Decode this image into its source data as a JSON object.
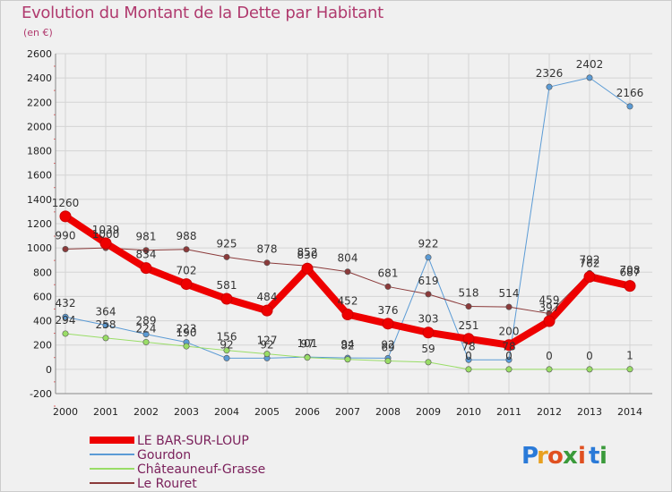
{
  "title": "Evolution du Montant de la Dette par Habitant",
  "subtitle": "(en €)",
  "logo": {
    "letters": [
      "P",
      "r",
      "o",
      "x",
      "i",
      "t",
      "i"
    ],
    "colors": [
      "#2a7ad8",
      "#e8a020",
      "#e05020",
      "#3a9a3a",
      "#e05020",
      "#2a7ad8",
      "#3a9a3a"
    ]
  },
  "chart_data": {
    "type": "line",
    "title": "Evolution du Montant de la Dette par Habitant",
    "ylabel": "(en €)",
    "x": [
      "2000",
      "2001",
      "2002",
      "2003",
      "2004",
      "2005",
      "2006",
      "2007",
      "2008",
      "2009",
      "2010",
      "2011",
      "2012",
      "2013",
      "2014"
    ],
    "yticks": [
      "-200",
      "0",
      "200",
      "400",
      "600",
      "800",
      "1000",
      "1200",
      "1400",
      "1600",
      "1800",
      "2000",
      "2200",
      "2400",
      "2600"
    ],
    "ylim": [
      -200,
      2600
    ],
    "grid": true,
    "legend": "bottom-left",
    "series": [
      {
        "name": "LE BAR-SUR-LOUP",
        "color": "#ee0000",
        "width": 8,
        "values": [
          1260,
          1039,
          834,
          702,
          581,
          484,
          830,
          452,
          376,
          303,
          251,
          200,
          397,
          762,
          687
        ],
        "labels": [
          "1260",
          "1039",
          "834",
          "702",
          "581",
          "484",
          "830",
          "452",
          "376",
          "303",
          "251",
          "200",
          "397",
          "762",
          "687"
        ]
      },
      {
        "name": "Gourdon",
        "color": "#5b9bd5",
        "width": 1,
        "values": [
          432,
          364,
          289,
          223,
          92,
          92,
          101,
          94,
          92,
          922,
          78,
          78,
          2326,
          2402,
          2166
        ],
        "labels": [
          "432",
          "364",
          "289",
          "223",
          "92",
          "92",
          "101",
          "94",
          "92",
          "922",
          "78",
          "78",
          "2326",
          "2402",
          "2166"
        ]
      },
      {
        "name": "Châteauneuf-Grasse",
        "color": "#99dd66",
        "width": 1,
        "values": [
          294,
          258,
          224,
          190,
          156,
          127,
          97,
          82,
          69,
          59,
          0,
          0,
          0,
          0,
          1
        ],
        "labels": [
          "294",
          "258",
          "224",
          "190",
          "156",
          "127",
          "97",
          "82",
          "69",
          "59",
          "0",
          "0",
          "0",
          "0",
          "1"
        ]
      },
      {
        "name": "Le Rouret",
        "color": "#8b3a3a",
        "width": 1,
        "values": [
          990,
          1000,
          981,
          988,
          925,
          878,
          852,
          804,
          681,
          619,
          518,
          514,
          459,
          792,
          708
        ],
        "labels": [
          "990",
          "1000",
          "981",
          "988",
          "925",
          "878",
          "852",
          "804",
          "681",
          "619",
          "518",
          "514",
          "459",
          "792",
          "708"
        ]
      }
    ]
  }
}
